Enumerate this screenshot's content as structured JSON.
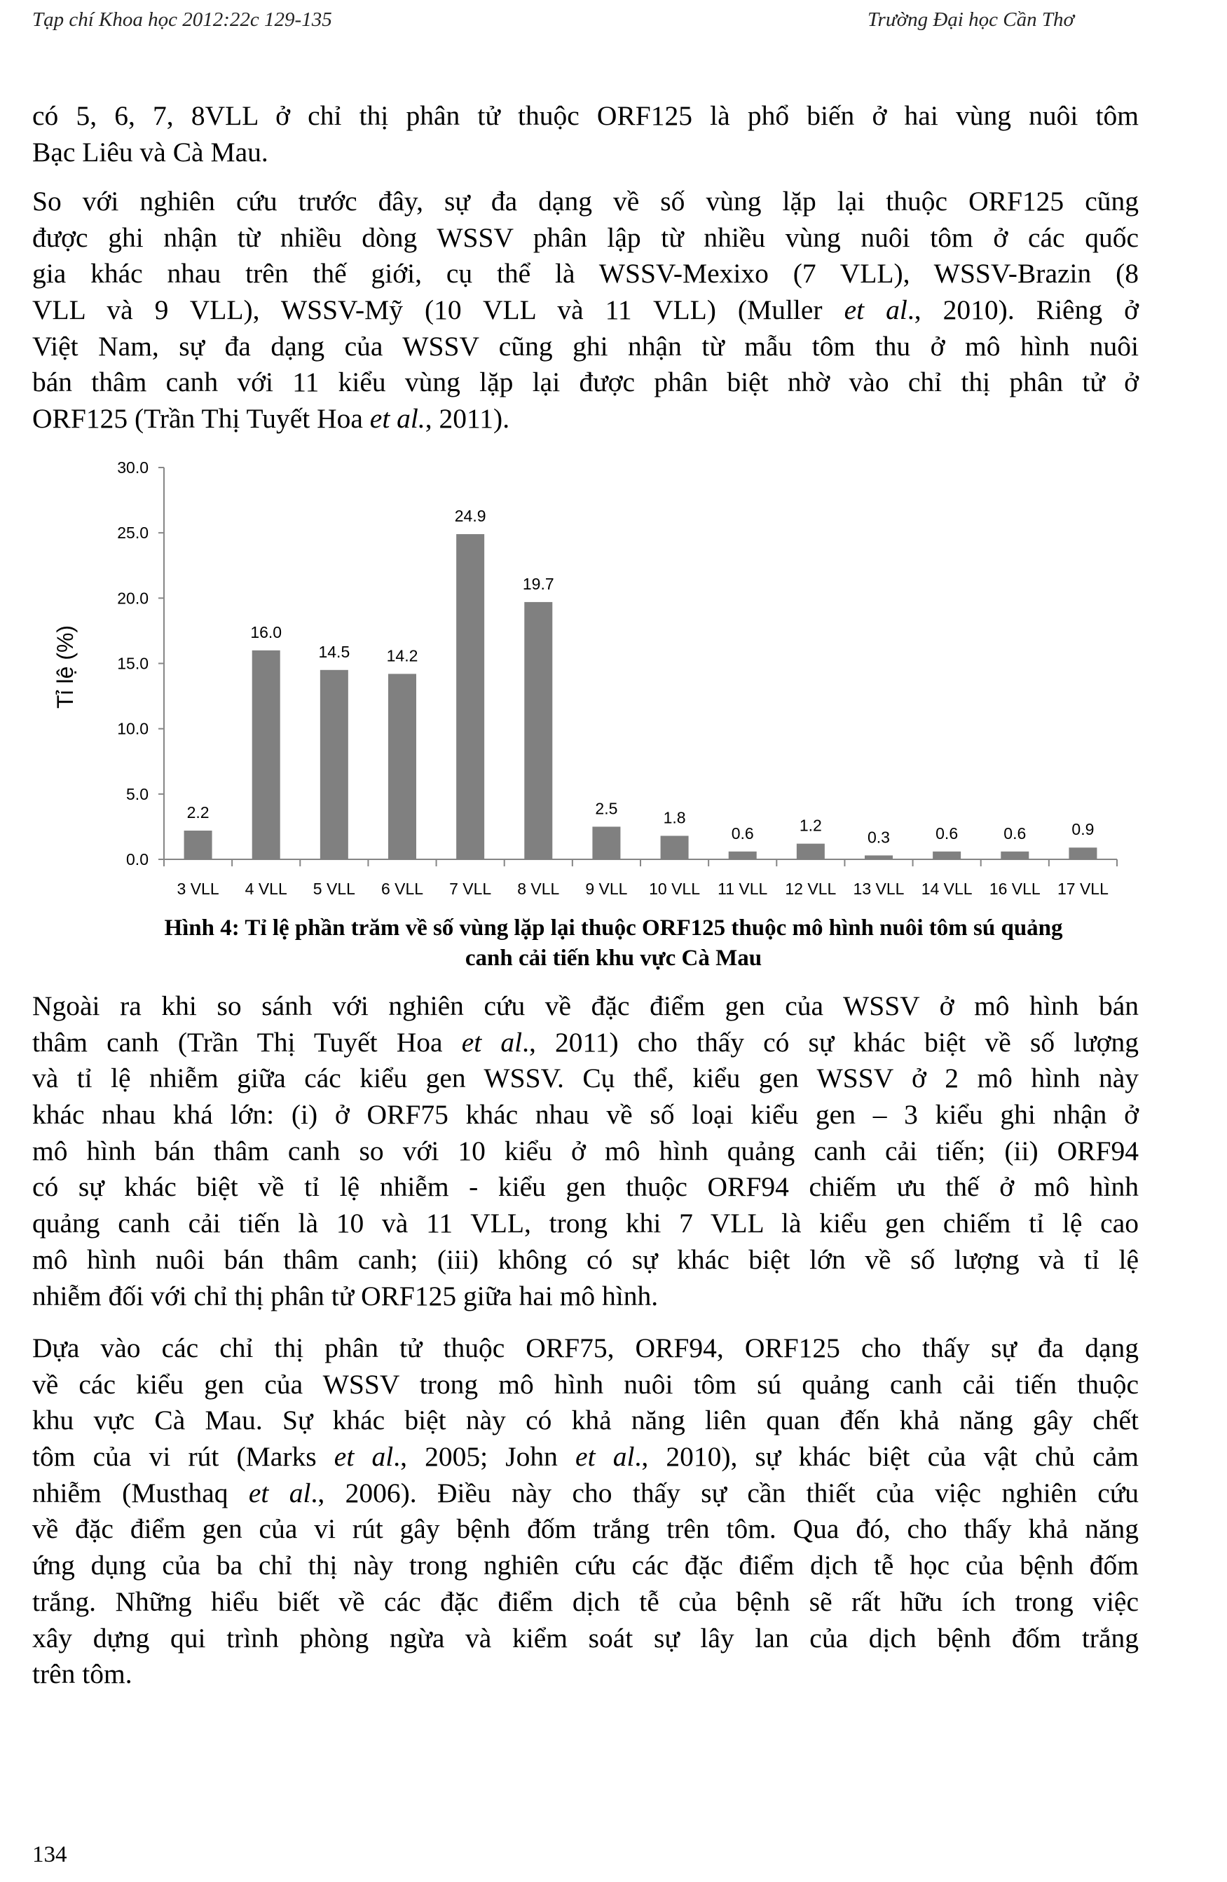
{
  "header": {
    "left": "Tạp chí Khoa học 2012:22c 129-135",
    "right": "Trường Đại học Cần Thơ"
  },
  "paragraphs": [
    [
      [
        "có 5, 6, 7, 8VLL ở chỉ thị phân tử thuộc ORF125 là phổ biến ở hai vùng nuôi tôm"
      ],
      [
        "Bạc Liêu và Cà Mau."
      ]
    ],
    [
      [
        "So với nghiên cứu trước đây, sự đa dạng về số vùng lặp lại thuộc ORF125 cũng"
      ],
      [
        "được ghi nhận từ nhiều dòng WSSV phân lập từ nhiều vùng nuôi tôm ở các quốc"
      ],
      [
        "gia khác nhau trên thế giới, cụ thể là WSSV-Mexixo (7 VLL), WSSV-Brazin (8"
      ],
      [
        "VLL và 9 VLL), WSSV-Mỹ (10 VLL và 11 VLL) (Muller ",
        "et al",
        "., 2010). Riêng ở"
      ],
      [
        "Việt Nam, sự đa dạng của WSSV cũng ghi nhận từ mẫu tôm thu ở mô hình nuôi"
      ],
      [
        "bán thâm canh với 11 kiểu vùng lặp lại được phân biệt nhờ vào chỉ thị phân tử ở"
      ],
      [
        "ORF125 (Trần Thị Tuyết Hoa ",
        "et al.",
        ", 2011)."
      ]
    ],
    [
      [
        "Ngoài ra khi so sánh với nghiên cứu về đặc điểm gen của WSSV ở mô hình bán"
      ],
      [
        "thâm canh (Trần Thị Tuyết Hoa ",
        "et al",
        "., 2011) cho thấy có sự khác biệt về số lượng"
      ],
      [
        "và tỉ lệ nhiễm giữa các kiểu gen WSSV. Cụ thể, kiểu gen WSSV ở 2 mô hình này"
      ],
      [
        "khác nhau khá lớn: (i) ở ORF75 khác nhau về số loại kiểu gen – 3 kiểu ghi nhận ở"
      ],
      [
        "mô hình bán thâm canh so với 10 kiểu ở mô hình quảng canh cải tiến; (ii) ORF94"
      ],
      [
        "có sự khác biệt về tỉ lệ nhiễm - kiểu gen thuộc ORF94 chiếm ưu thế ở mô hình"
      ],
      [
        "quảng canh cải tiến là 10 và 11 VLL, trong khi 7 VLL là kiểu gen chiếm tỉ lệ cao"
      ],
      [
        "mô hình nuôi bán thâm canh; (iii) không có sự khác biệt lớn về số lượng và tỉ lệ"
      ],
      [
        "nhiễm đối với chỉ thị phân tử ORF125 giữa hai mô hình."
      ]
    ],
    [
      [
        "Dựa vào các chỉ thị phân tử thuộc ORF75, ORF94, ORF125 cho thấy sự đa dạng"
      ],
      [
        "về các kiểu gen của WSSV trong mô hình nuôi tôm sú quảng canh cải tiến thuộc"
      ],
      [
        "khu vực Cà Mau. Sự khác biệt này có khả năng liên quan đến khả năng gây chết"
      ],
      [
        "tôm của vi rút (Marks ",
        "et al",
        "., 2005; John ",
        "et al",
        "., 2010), sự khác biệt của vật chủ cảm"
      ],
      [
        "nhiễm (Musthaq ",
        "et al",
        "., 2006). Điều này cho thấy sự cần thiết của việc nghiên cứu"
      ],
      [
        "về đặc điểm gen của vi rút gây bệnh đốm trắng trên tôm. Qua đó, cho thấy khả năng"
      ],
      [
        "ứng dụng của ba chỉ thị này trong nghiên cứu các đặc điểm dịch tễ học của bệnh đốm"
      ],
      [
        "trắng. Những hiểu biết về các đặc điểm dịch tễ của bệnh sẽ rất hữu ích trong việc"
      ],
      [
        "xây dựng qui trình phòng ngừa và kiểm soát sự lây lan của dịch bệnh đốm trắng"
      ],
      [
        "trên tôm."
      ]
    ]
  ],
  "chart_data": {
    "type": "bar",
    "categories": [
      "3 VLL",
      "4 VLL",
      "5 VLL",
      "6 VLL",
      "7 VLL",
      "8 VLL",
      "9 VLL",
      "10 VLL",
      "11 VLL",
      "12 VLL",
      "13 VLL",
      "14 VLL",
      "16 VLL",
      "17 VLL"
    ],
    "values": [
      2.2,
      16.0,
      14.5,
      14.2,
      24.9,
      19.7,
      2.5,
      1.8,
      0.6,
      1.2,
      0.3,
      0.6,
      0.6,
      0.9
    ],
    "data_labels": [
      "2.2",
      "16.0",
      "14.5",
      "14.2",
      "24.9",
      "19.7",
      "2.5",
      "1.8",
      "0.6",
      "1.2",
      "0.3",
      "0.6",
      "0.6",
      "0.9"
    ],
    "ylabel": "Tỉ lệ (%)",
    "xlabel": "",
    "ylim": [
      0,
      30
    ],
    "yticks": [
      "0.0",
      "5.0",
      "10.0",
      "15.0",
      "20.0",
      "25.0",
      "30.0"
    ],
    "grid": false,
    "bar_color": "#808080"
  },
  "caption": {
    "line1": "Hình 4: Tỉ lệ phần trăm về số vùng lặp lại thuộc ORF125 thuộc mô hình nuôi tôm sú quảng",
    "line2": "canh cải tiến khu vực Cà Mau"
  },
  "page_number": "134"
}
